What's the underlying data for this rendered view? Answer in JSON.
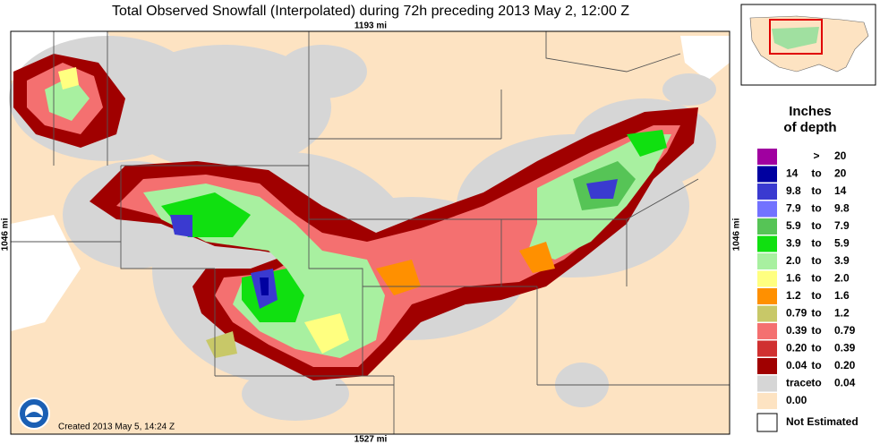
{
  "title": "Total Observed Snowfall (Interpolated) during 72h preceding 2013 May 2, 12:00 Z",
  "map": {
    "scale_top": "1193 mi",
    "scale_bottom": "1527 mi",
    "scale_left": "1046 mi",
    "scale_right": "1046 mi",
    "created": "Created 2013 May 5, 14:24 Z"
  },
  "legend": {
    "title_line1": "Inches",
    "title_line2": "of depth",
    "items": [
      {
        "color": "#a000a0",
        "joiner": ">",
        "upper": "20"
      },
      {
        "color": "#0000a0",
        "lower": "14",
        "joiner": "to",
        "upper": "20"
      },
      {
        "color": "#3a3ad0",
        "lower": "9.8",
        "joiner": "to",
        "upper": "14"
      },
      {
        "color": "#7272ff",
        "lower": "7.9",
        "joiner": "to",
        "upper": "9.8"
      },
      {
        "color": "#56c456",
        "lower": "5.9",
        "joiner": "to",
        "upper": "7.9"
      },
      {
        "color": "#10e010",
        "lower": "3.9",
        "joiner": "to",
        "upper": "5.9"
      },
      {
        "color": "#a8f0a0",
        "lower": "2.0",
        "joiner": "to",
        "upper": "3.9"
      },
      {
        "color": "#ffff80",
        "lower": "1.6",
        "joiner": "to",
        "upper": "2.0"
      },
      {
        "color": "#ff9000",
        "lower": "1.2",
        "joiner": "to",
        "upper": "1.6"
      },
      {
        "color": "#c8c868",
        "lower": "0.79",
        "joiner": "to",
        "upper": "1.2"
      },
      {
        "color": "#f47070",
        "lower": "0.39",
        "joiner": "to",
        "upper": "0.79"
      },
      {
        "color": "#d03030",
        "lower": "0.20",
        "joiner": "to",
        "upper": "0.39"
      },
      {
        "color": "#a00000",
        "lower": "0.04",
        "joiner": "to",
        "upper": "0.20"
      },
      {
        "color": "#d6d6d6",
        "lower": "trace",
        "joiner": "to",
        "upper": "0.04"
      },
      {
        "color": "#fde3c2",
        "lower": "0.00"
      }
    ],
    "not_estimated": "Not Estimated"
  }
}
